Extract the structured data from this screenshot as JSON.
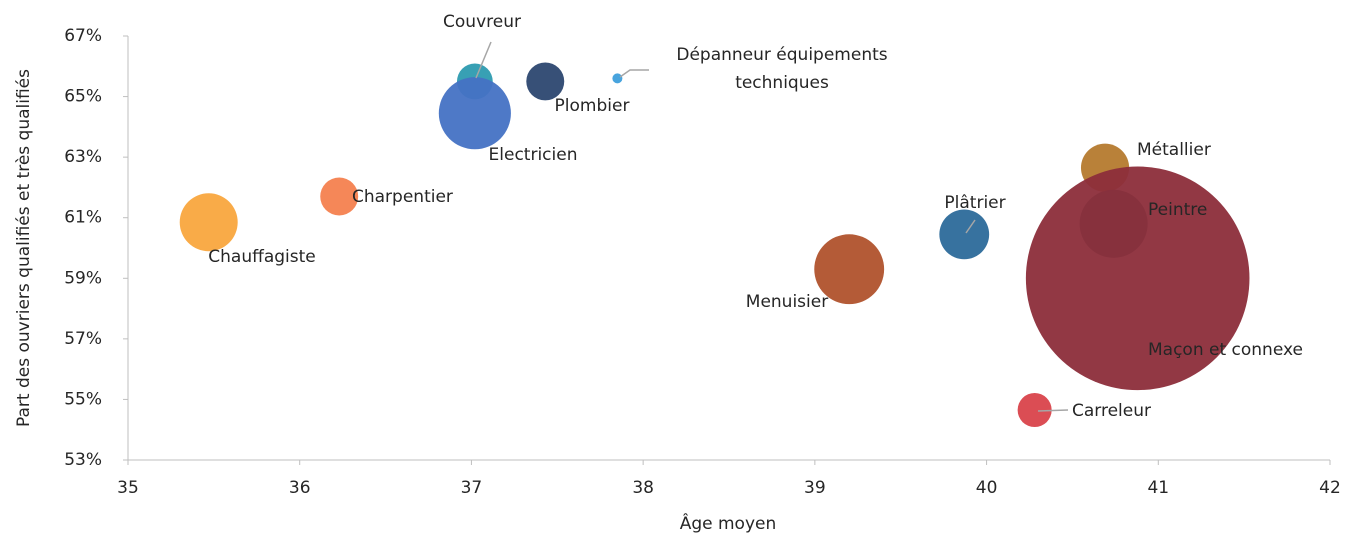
{
  "chart_data": {
    "type": "bubble",
    "x_label": "Âge moyen",
    "y_label": "Part des ouvriers qualifiés et très qualifiés",
    "labels": [
      "Chauffagiste",
      "Charpentier",
      "Couvreur",
      "Electricien",
      "Plombier",
      "Dépanneur équipements\ntechniques",
      "Menuisier",
      "Plâtrier",
      "Métallier",
      "Peintre",
      "Maçon et connexe",
      "Carreleur"
    ],
    "x": [
      35.47,
      36.23,
      37.02,
      37.02,
      37.43,
      37.85,
      39.2,
      39.87,
      40.69,
      40.74,
      40.88,
      40.28
    ],
    "values": [
      60.85,
      61.7,
      65.5,
      64.45,
      65.5,
      65.6,
      59.3,
      60.45,
      62.65,
      60.8,
      59.0,
      54.65
    ],
    "sizes": [
      8.4,
      3.6,
      3.2,
      13,
      3.6,
      0.25,
      12.2,
      6.2,
      5.8,
      11.6,
      125,
      2.9
    ],
    "colors": [
      "#f9a73e",
      "#f4814f",
      "#2d9bb0",
      "#4472c4",
      "#2c4770",
      "#3e9fdc",
      "#b0522c",
      "#2c6a9a",
      "#b57a2e",
      "#2b6b78",
      "#8c2d3a",
      "#d9434b"
    ],
    "xlim": [
      35,
      42
    ],
    "xticks": [
      35,
      36,
      37,
      38,
      39,
      40,
      41,
      42
    ],
    "ylim": [
      53,
      67
    ],
    "yticks": [
      {
        "value": 53,
        "label": "53%"
      },
      {
        "value": 55,
        "label": "55%"
      },
      {
        "value": 57,
        "label": "57%"
      },
      {
        "value": 59,
        "label": "59%"
      },
      {
        "value": 61,
        "label": "61%"
      },
      {
        "value": 63,
        "label": "63%"
      },
      {
        "value": 65,
        "label": "65%"
      },
      {
        "value": 67,
        "label": "67%"
      }
    ]
  }
}
